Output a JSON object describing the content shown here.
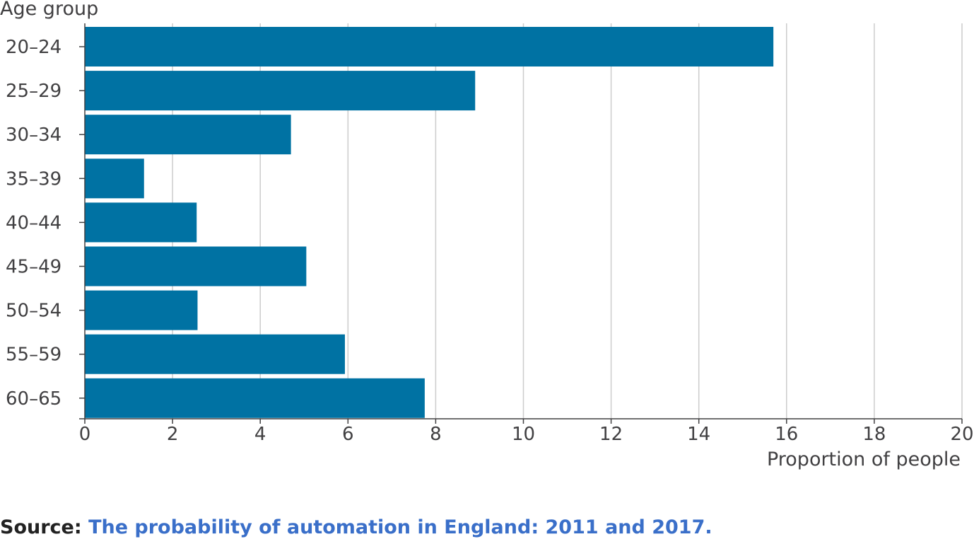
{
  "chart_data": {
    "type": "bar",
    "orientation": "horizontal",
    "categories": [
      "20–24",
      "25–29",
      "30–34",
      "35–39",
      "40–44",
      "45–49",
      "50–54",
      "55–59",
      "60–65"
    ],
    "values": [
      15.7,
      8.9,
      4.7,
      1.35,
      2.55,
      5.05,
      2.57,
      5.93,
      7.75
    ],
    "ylabel": "Age group",
    "xlabel": "Proportion of people",
    "xlim": [
      0,
      20
    ],
    "xticks": [
      0,
      2,
      4,
      6,
      8,
      10,
      12,
      14,
      16,
      18,
      20
    ],
    "grid": "vertical",
    "bar_color": "#0072a3",
    "grid_color": "#cccccc",
    "axis_color": "#414042"
  },
  "source": {
    "label": "Source:",
    "link_text": "The probability of automation in England: 2011 and 2017.",
    "link_color": "#3a6fc9"
  }
}
